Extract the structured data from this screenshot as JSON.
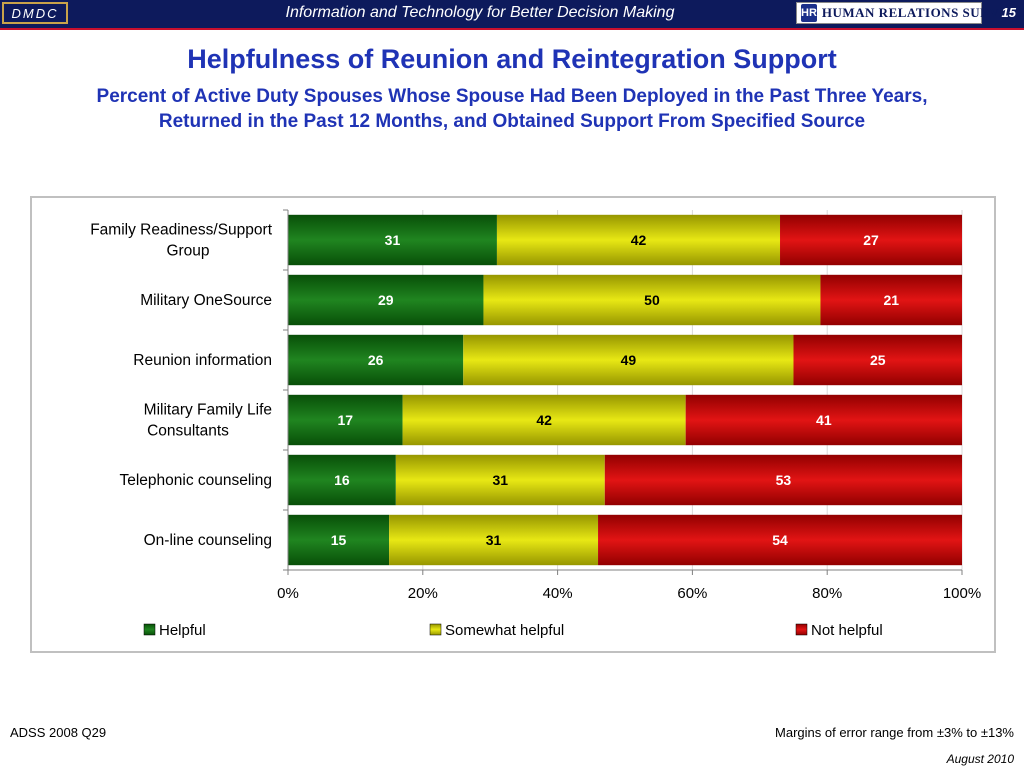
{
  "header": {
    "org": "DMDC",
    "tagline": "Information and Technology for Better Decision Making",
    "logo_badge": "HR",
    "logo_text": "HUMAN RELATIONS SURVEYS",
    "page_number": "15"
  },
  "title": "Helpfulness of Reunion and Reintegration Support",
  "subtitle": "Percent of Active Duty Spouses Whose Spouse Had Been Deployed in the Past Three Years, Returned in the Past 12 Months, and Obtained Support From Specified Source",
  "chart_data": {
    "type": "bar",
    "orientation": "horizontal",
    "stacked": "percent",
    "categories": [
      "Family Readiness/Support Group",
      "Military OneSource",
      "Reunion information",
      "Military Family Life Consultants",
      "Telephonic counseling",
      "On-line counseling"
    ],
    "series": [
      {
        "name": "Helpful",
        "values": [
          31,
          29,
          26,
          17,
          16,
          15
        ],
        "color": "#0d7a0d",
        "label_color": "#ffffff"
      },
      {
        "name": "Somewhat helpful",
        "values": [
          42,
          50,
          49,
          42,
          31,
          31
        ],
        "color": "#e6e600",
        "label_color": "#000000"
      },
      {
        "name": "Not helpful",
        "values": [
          27,
          21,
          25,
          41,
          53,
          54
        ],
        "color": "#e00000",
        "label_color": "#ffffff"
      }
    ],
    "xlim": [
      0,
      100
    ],
    "xticks": [
      "0%",
      "20%",
      "40%",
      "60%",
      "80%",
      "100%"
    ],
    "grid": true,
    "legend_position": "bottom"
  },
  "footer": {
    "source": "ADSS 2008 Q29",
    "margin_note": "Margins of error range from ±3% to ±13%",
    "date": "August 2010"
  }
}
